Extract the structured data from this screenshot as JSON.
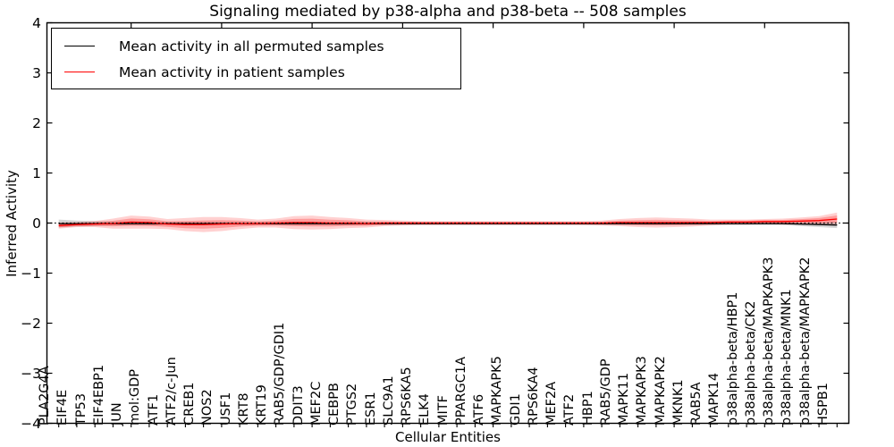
{
  "title": "Signaling mediated by p38-alpha and p38-beta -- 508 samples",
  "axes": {
    "xlabel": "Cellular Entities",
    "ylabel": "Inferred Activity"
  },
  "legend": {
    "items": [
      {
        "label": "Mean activity in all permuted samples",
        "color": "#000000"
      },
      {
        "label": "Mean activity in patient samples",
        "color": "#ff0000"
      }
    ]
  },
  "chart_data": {
    "type": "line",
    "title": "Signaling mediated by p38-alpha and p38-beta -- 508 samples",
    "xlabel": "Cellular Entities",
    "ylabel": "Inferred Activity",
    "ylim": [
      -4,
      4
    ],
    "yticks": [
      4,
      3,
      2,
      1,
      0,
      -1,
      -2,
      -3,
      -4
    ],
    "grid": false,
    "legend_position": "upper left",
    "zero_line": {
      "y": 0,
      "style": "dotted",
      "color": "#000000"
    },
    "categories": [
      "PLA2G4A",
      "EIF4E",
      "TP53",
      "EIF4EBP1",
      "JUN",
      "mol:GDP",
      "ATF1",
      "ATF2/c-Jun",
      "CREB1",
      "NOS2",
      "USF1",
      "KRT8",
      "KRT19",
      "RAB5/GDP/GDI1",
      "DDIT3",
      "MEF2C",
      "CEBPB",
      "PTGS2",
      "ESR1",
      "SLC9A1",
      "RPS6KA5",
      "ELK4",
      "MITF",
      "PPARGC1A",
      "ATF6",
      "MAPKAPK5",
      "GDI1",
      "RPS6KA4",
      "MEF2A",
      "ATF2",
      "HBP1",
      "RAB5/GDP",
      "MAPK11",
      "MAPKAPK3",
      "MAPKAPK2",
      "MKNK1",
      "RAB5A",
      "MAPK14",
      "p38alpha-beta/HBP1",
      "p38alpha-beta/CK2",
      "p38alpha-beta/MAPKAPK3",
      "p38alpha-beta/MNK1",
      "p38alpha-beta/MAPKAPK2",
      "HSPB1"
    ],
    "series": [
      {
        "name": "Mean activity in all permuted samples",
        "color": "#000000",
        "band_color": "rgba(0,0,0,0.16)",
        "values": [
          -0.01,
          -0.01,
          -0.01,
          -0.01,
          -0.01,
          -0.01,
          -0.01,
          -0.01,
          -0.01,
          -0.01,
          -0.01,
          -0.01,
          -0.01,
          -0.01,
          -0.01,
          -0.01,
          -0.01,
          -0.01,
          -0.01,
          -0.01,
          -0.01,
          -0.01,
          -0.01,
          -0.01,
          -0.01,
          -0.01,
          -0.01,
          -0.01,
          -0.01,
          -0.01,
          -0.01,
          -0.01,
          -0.01,
          -0.01,
          -0.01,
          -0.01,
          -0.01,
          -0.01,
          -0.01,
          -0.01,
          -0.01,
          -0.02,
          -0.03,
          -0.04
        ],
        "band_halfwidth": [
          0.08,
          0.06,
          0.05,
          0.04,
          0.04,
          0.04,
          0.03,
          0.03,
          0.03,
          0.03,
          0.03,
          0.03,
          0.03,
          0.03,
          0.03,
          0.03,
          0.03,
          0.03,
          0.03,
          0.03,
          0.03,
          0.03,
          0.03,
          0.03,
          0.03,
          0.03,
          0.03,
          0.03,
          0.03,
          0.03,
          0.03,
          0.03,
          0.03,
          0.03,
          0.03,
          0.03,
          0.03,
          0.03,
          0.03,
          0.03,
          0.03,
          0.04,
          0.05,
          0.06
        ]
      },
      {
        "name": "Mean activity in patient samples",
        "color": "#ff0000",
        "band_color": "rgba(255,0,0,0.18)",
        "values": [
          -0.05,
          -0.03,
          -0.02,
          -0.01,
          0.02,
          0.01,
          -0.02,
          -0.03,
          -0.03,
          -0.02,
          -0.01,
          -0.01,
          0.0,
          0.01,
          0.01,
          0.0,
          0.0,
          -0.01,
          0.0,
          0.0,
          0.0,
          0.0,
          0.0,
          0.0,
          0.0,
          0.0,
          0.0,
          0.0,
          0.0,
          0.0,
          0.0,
          0.01,
          0.01,
          0.01,
          0.01,
          0.01,
          0.01,
          0.02,
          0.02,
          0.03,
          0.03,
          0.04,
          0.05,
          0.08
        ],
        "band_halfwidth": [
          0.06,
          0.05,
          0.06,
          0.1,
          0.13,
          0.12,
          0.1,
          0.13,
          0.15,
          0.14,
          0.11,
          0.08,
          0.09,
          0.13,
          0.14,
          0.12,
          0.1,
          0.08,
          0.06,
          0.05,
          0.04,
          0.04,
          0.04,
          0.04,
          0.04,
          0.04,
          0.04,
          0.04,
          0.04,
          0.04,
          0.05,
          0.07,
          0.09,
          0.1,
          0.09,
          0.08,
          0.06,
          0.05,
          0.05,
          0.05,
          0.06,
          0.07,
          0.09,
          0.13
        ]
      }
    ]
  }
}
